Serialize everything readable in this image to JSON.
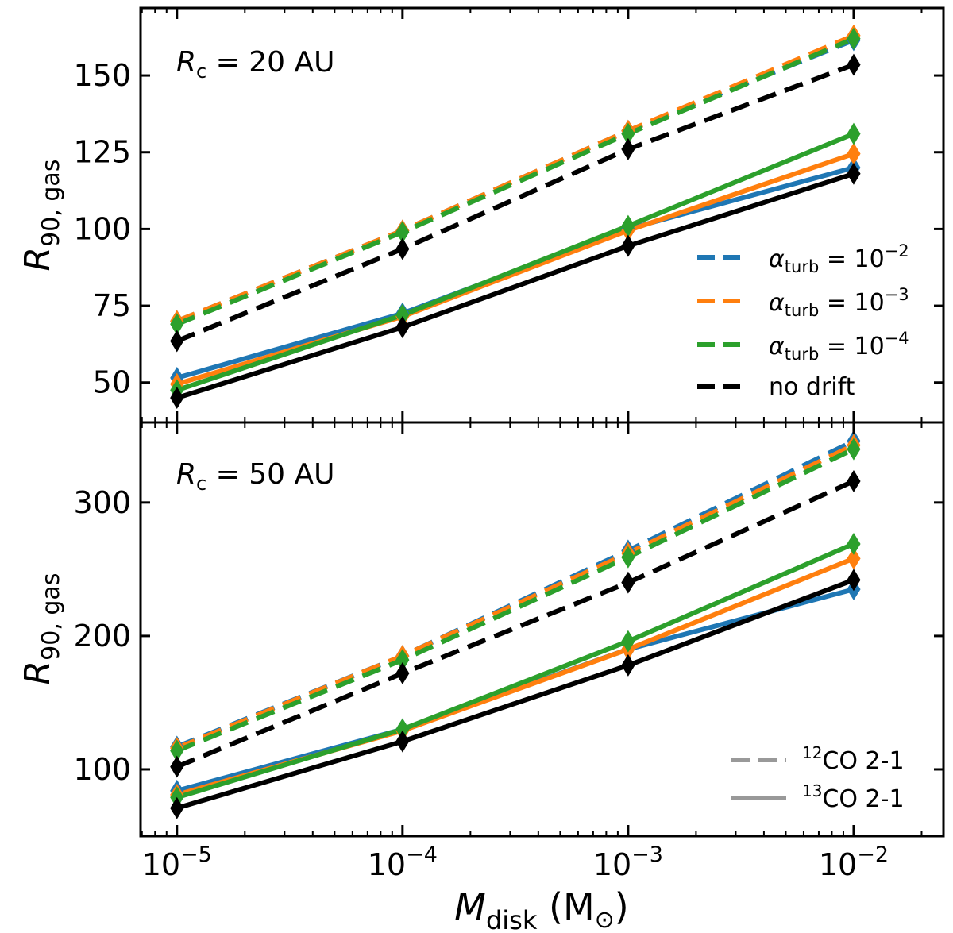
{
  "chart_data": [
    {
      "type": "line",
      "panel": "top",
      "annotation": {
        "symbol": "R",
        "subscript": "c",
        "text": " = 20 AU"
      },
      "ylabel": {
        "symbol": "R",
        "subscript": "90, gas"
      },
      "xscale": "log",
      "xlim": [
        6.9e-06,
        0.025
      ],
      "ylim": [
        37,
        172
      ],
      "yticks": [
        50,
        75,
        100,
        125,
        150
      ],
      "x": [
        1e-05,
        0.0001,
        0.001,
        0.01
      ],
      "series": [
        {
          "name": "alpha_turb=1e-2 12CO 2-1",
          "color": "#1f77b4",
          "style": "dashed",
          "values": [
            70,
            99.5,
            132,
            161.5
          ]
        },
        {
          "name": "alpha_turb=1e-3 12CO 2-1",
          "color": "#ff7f0e",
          "style": "dashed",
          "values": [
            70,
            99.5,
            132,
            163
          ]
        },
        {
          "name": "alpha_turb=1e-4 12CO 2-1",
          "color": "#2ca02c",
          "style": "dashed",
          "values": [
            69,
            99,
            131,
            162
          ]
        },
        {
          "name": "no drift 12CO 2-1",
          "color": "#000000",
          "style": "dashed",
          "values": [
            63.5,
            93.5,
            126,
            153.5
          ]
        },
        {
          "name": "alpha_turb=1e-2 13CO 2-1",
          "color": "#1f77b4",
          "style": "solid",
          "values": [
            51.5,
            72.5,
            100,
            120
          ]
        },
        {
          "name": "alpha_turb=1e-3 13CO 2-1",
          "color": "#ff7f0e",
          "style": "solid",
          "values": [
            49.5,
            71.5,
            99.5,
            124.5
          ]
        },
        {
          "name": "alpha_turb=1e-4 13CO 2-1",
          "color": "#2ca02c",
          "style": "solid",
          "values": [
            47.5,
            72,
            101,
            131
          ]
        },
        {
          "name": "no drift 13CO 2-1",
          "color": "#000000",
          "style": "solid",
          "values": [
            45,
            68,
            94.5,
            118
          ]
        }
      ],
      "legend": {
        "position": "lower-right",
        "entries": [
          {
            "symbol": "α",
            "subscript": "turb",
            "text": " = 10",
            "exponent": "−2",
            "color": "#1f77b4"
          },
          {
            "symbol": "α",
            "subscript": "turb",
            "text": " = 10",
            "exponent": "−3",
            "color": "#ff7f0e"
          },
          {
            "symbol": "α",
            "subscript": "turb",
            "text": " = 10",
            "exponent": "−4",
            "color": "#2ca02c"
          },
          {
            "text": "no drift",
            "color": "#000000"
          }
        ]
      }
    },
    {
      "type": "line",
      "panel": "bottom",
      "annotation": {
        "symbol": "R",
        "subscript": "c",
        "text": " = 50 AU"
      },
      "ylabel": {
        "symbol": "R",
        "subscript": "90, gas"
      },
      "xlabel": {
        "symbol": "M",
        "subscript": "disk",
        "text": " (M",
        "sun": "⊙",
        "close": ")"
      },
      "xscale": "log",
      "xlim": [
        6.9e-06,
        0.025
      ],
      "ylim": [
        50,
        360
      ],
      "yticks": [
        100,
        200,
        300
      ],
      "xticks": [
        {
          "value": 1e-05,
          "base": "10",
          "exponent": "−5"
        },
        {
          "value": 0.0001,
          "base": "10",
          "exponent": "−4"
        },
        {
          "value": 0.001,
          "base": "10",
          "exponent": "−3"
        },
        {
          "value": 0.01,
          "base": "10",
          "exponent": "−2"
        }
      ],
      "x": [
        1e-05,
        0.0001,
        0.001,
        0.01
      ],
      "series": [
        {
          "name": "alpha_turb=1e-2 12CO 2-1",
          "color": "#1f77b4",
          "style": "dashed",
          "values": [
            117,
            185,
            264,
            346
          ]
        },
        {
          "name": "alpha_turb=1e-3 12CO 2-1",
          "color": "#ff7f0e",
          "style": "dashed",
          "values": [
            116,
            185,
            262,
            343
          ]
        },
        {
          "name": "alpha_turb=1e-4 12CO 2-1",
          "color": "#2ca02c",
          "style": "dashed",
          "values": [
            114,
            182,
            259,
            340
          ]
        },
        {
          "name": "no drift 12CO 2-1",
          "color": "#000000",
          "style": "dashed",
          "values": [
            102,
            172,
            240,
            316
          ]
        },
        {
          "name": "alpha_turb=1e-2 13CO 2-1",
          "color": "#1f77b4",
          "style": "solid",
          "values": [
            84,
            130,
            190,
            235
          ]
        },
        {
          "name": "alpha_turb=1e-3 13CO 2-1",
          "color": "#ff7f0e",
          "style": "solid",
          "values": [
            81,
            129,
            190,
            258
          ]
        },
        {
          "name": "alpha_turb=1e-4 13CO 2-1",
          "color": "#2ca02c",
          "style": "solid",
          "values": [
            79,
            130,
            196,
            269
          ]
        },
        {
          "name": "no drift 13CO 2-1",
          "color": "#000000",
          "style": "solid",
          "values": [
            71,
            121,
            178,
            242
          ]
        }
      ],
      "legend": {
        "position": "lower-right",
        "entries": [
          {
            "sup": "12",
            "text": "CO 2-1",
            "style": "dashed",
            "color": "#999999"
          },
          {
            "sup": "13",
            "text": "CO 2-1",
            "style": "solid",
            "color": "#999999"
          }
        ]
      }
    }
  ]
}
